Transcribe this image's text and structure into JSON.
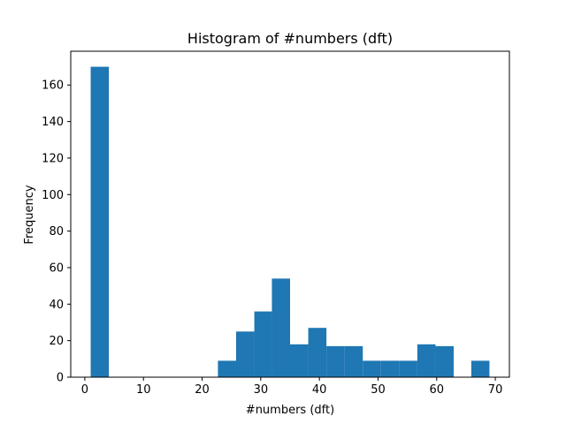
{
  "chart_data": {
    "type": "bar",
    "title": "Histogram of #numbers (dft)",
    "xlabel": "#numbers (dft)",
    "ylabel": "Frequency",
    "xlim": [
      -2.4,
      72.4
    ],
    "ylim": [
      0,
      178.5
    ],
    "xticks": [
      0,
      10,
      20,
      30,
      40,
      50,
      60,
      70
    ],
    "yticks": [
      0,
      20,
      40,
      60,
      80,
      100,
      120,
      140,
      160
    ],
    "bar_color": "#1f77b4",
    "bins": [
      {
        "x0": 1.0,
        "x1": 4.1,
        "count": 170
      },
      {
        "x0": 22.7,
        "x1": 25.8,
        "count": 9
      },
      {
        "x0": 25.8,
        "x1": 28.9,
        "count": 25
      },
      {
        "x0": 28.9,
        "x1": 31.9,
        "count": 36
      },
      {
        "x0": 31.9,
        "x1": 35.0,
        "count": 54
      },
      {
        "x0": 35.0,
        "x1": 38.1,
        "count": 18
      },
      {
        "x0": 38.1,
        "x1": 41.2,
        "count": 27
      },
      {
        "x0": 41.2,
        "x1": 44.3,
        "count": 17
      },
      {
        "x0": 44.3,
        "x1": 47.4,
        "count": 17
      },
      {
        "x0": 47.4,
        "x1": 50.5,
        "count": 9
      },
      {
        "x0": 50.5,
        "x1": 53.6,
        "count": 9
      },
      {
        "x0": 53.6,
        "x1": 56.7,
        "count": 9
      },
      {
        "x0": 56.7,
        "x1": 59.8,
        "count": 18
      },
      {
        "x0": 59.8,
        "x1": 62.9,
        "count": 17
      },
      {
        "x0": 65.9,
        "x1": 69.0,
        "count": 9
      }
    ]
  }
}
